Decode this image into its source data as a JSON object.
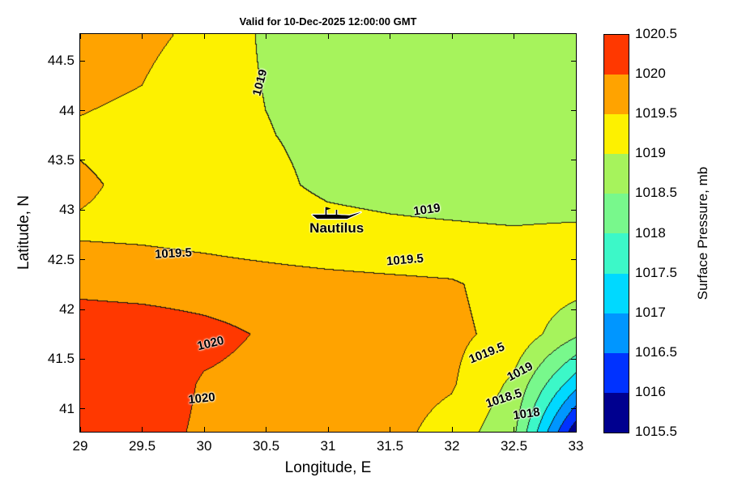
{
  "figure": {
    "title": "Valid for 10-Dec-2025 12:00:00 GMT"
  },
  "axes": {
    "xlabel": "Longitude, E",
    "ylabel": "Latitude, N",
    "x_ticks": [
      29,
      29.5,
      30,
      30.5,
      31,
      31.5,
      32,
      32.5,
      33
    ],
    "y_ticks": [
      41,
      41.5,
      42,
      42.5,
      43,
      43.5,
      44,
      44.5
    ],
    "x_range": [
      29,
      33
    ],
    "y_range": [
      40.77,
      44.77
    ]
  },
  "colorbar": {
    "label": "Surface Pressure, mb",
    "ticks": [
      1020.5,
      1020,
      1019.5,
      1019,
      1018.5,
      1018,
      1017.5,
      1017,
      1016.5,
      1016,
      1015.5
    ],
    "range": [
      1015.5,
      1020.5
    ]
  },
  "station": {
    "name": "Nautilus",
    "lon": 31.07,
    "lat": 42.9
  },
  "chart_data": {
    "type": "heatmap",
    "subtype": "filled-contour",
    "title": "Valid for 10-Dec-2025 12:00:00 GMT",
    "xlabel": "Longitude, E",
    "ylabel": "Latitude, N",
    "units": "mb",
    "xlim": [
      29,
      33
    ],
    "ylim": [
      40.77,
      44.77
    ],
    "zlim": [
      1015.5,
      1020.5
    ],
    "levels_step": 0.5,
    "palette": [
      "#00008f",
      "#0032ff",
      "#0096ff",
      "#00d9ff",
      "#3cf8c8",
      "#78f88c",
      "#a6f35c",
      "#fdf100",
      "#ffa300",
      "#ff3800"
    ],
    "contour_line_color": "#141414",
    "grid": {
      "lons": [
        29,
        29.5,
        30,
        30.5,
        31,
        31.5,
        32,
        32.5,
        33
      ],
      "lats": [
        44.75,
        44.25,
        43.75,
        43.25,
        42.75,
        42.25,
        41.75,
        41.25,
        40.75
      ],
      "pressure_mb": [
        [
          1019.65,
          1019.6,
          1019.4,
          1018.92,
          1018.85,
          1018.8,
          1018.75,
          1018.7,
          1018.65
        ],
        [
          1019.58,
          1019.5,
          1019.25,
          1018.98,
          1018.88,
          1018.82,
          1018.76,
          1018.72,
          1018.66
        ],
        [
          1019.45,
          1019.38,
          1019.22,
          1019.02,
          1018.9,
          1018.85,
          1018.8,
          1018.75,
          1018.7
        ],
        [
          1019.55,
          1019.42,
          1019.28,
          1019.1,
          1018.92,
          1018.86,
          1018.8,
          1018.76,
          1018.7
        ],
        [
          1019.45,
          1019.42,
          1019.35,
          1019.25,
          1019.15,
          1019.1,
          1019.08,
          1019.05,
          1019.1
        ],
        [
          1019.85,
          1019.8,
          1019.75,
          1019.7,
          1019.65,
          1019.6,
          1019.55,
          1019.3,
          1019.2
        ],
        [
          1020.35,
          1020.3,
          1020.15,
          1019.95,
          1019.75,
          1019.6,
          1019.6,
          1019.35,
          1018.6
        ],
        [
          1020.4,
          1020.35,
          1019.95,
          1019.85,
          1019.8,
          1019.7,
          1019.55,
          1018.9,
          1017.2
        ],
        [
          1020.3,
          1020.25,
          1019.9,
          1019.85,
          1019.8,
          1019.65,
          1019.3,
          1018.6,
          1015.6
        ]
      ]
    },
    "contour_labels": [
      {
        "text": "1019",
        "lon": 30.45,
        "lat": 44.28,
        "rot": -75
      },
      {
        "text": "1019",
        "lon": 31.8,
        "lat": 43.0,
        "rot": -8
      },
      {
        "text": "1019.5",
        "lon": 29.75,
        "lat": 42.56,
        "rot": -3
      },
      {
        "text": "1019.5",
        "lon": 31.62,
        "lat": 42.5,
        "rot": -5
      },
      {
        "text": "1020",
        "lon": 30.05,
        "lat": 41.66,
        "rot": -14
      },
      {
        "text": "1020",
        "lon": 29.98,
        "lat": 41.1,
        "rot": -6
      },
      {
        "text": "1019.5",
        "lon": 32.28,
        "lat": 41.56,
        "rot": -22
      },
      {
        "text": "1019",
        "lon": 32.55,
        "lat": 41.37,
        "rot": -28
      },
      {
        "text": "1018.5",
        "lon": 32.42,
        "lat": 41.1,
        "rot": -18
      },
      {
        "text": "1018",
        "lon": 32.6,
        "lat": 40.95,
        "rot": -8
      }
    ],
    "annotations": [
      {
        "text": "Nautilus",
        "lon": 31.07,
        "lat": 42.79
      }
    ]
  }
}
